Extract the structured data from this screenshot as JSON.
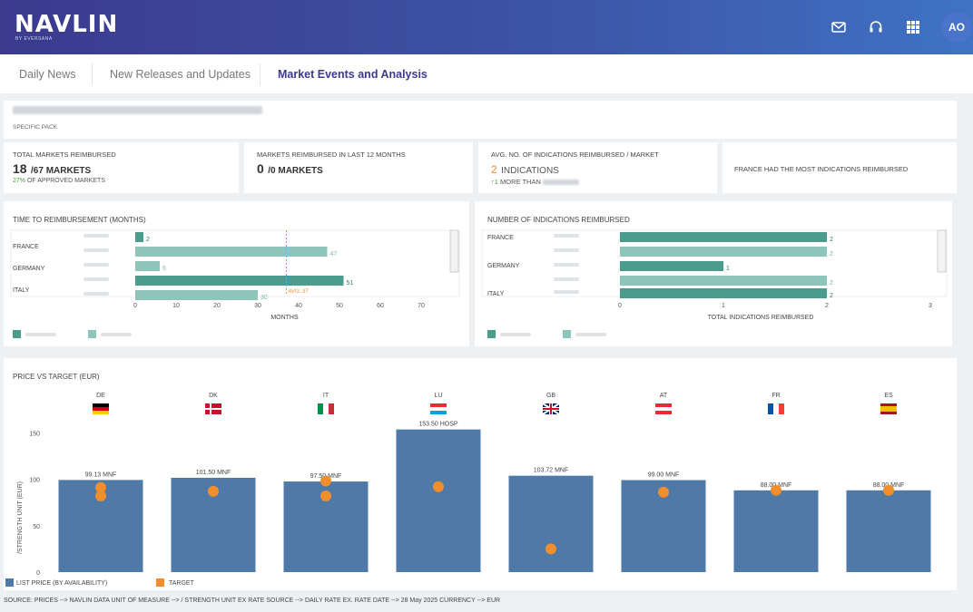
{
  "brand": {
    "name": "NAVLIN",
    "sub": "BY EVERSANA"
  },
  "user": {
    "initials": "AO"
  },
  "tabs": [
    {
      "label": "Daily News"
    },
    {
      "label": "New Releases and Updates"
    },
    {
      "label": "Market Events and Analysis"
    }
  ],
  "pack": {
    "label": "SPECIFIC PACK"
  },
  "kpis": {
    "total_label": "TOTAL MARKETS REIMBURSED",
    "total_value": "18",
    "total_unit": "/67 MARKETS",
    "total_pct": "27%",
    "total_pct_text": " OF APPROVED MARKETS",
    "last12_label": "MARKETS REIMBURSED IN LAST 12 MONTHS",
    "last12_value": "0",
    "last12_unit": "/0 MARKETS",
    "avg_label": "AVG. NO. OF INDICATIONS REIMBURSED / MARKET",
    "avg_value": "2",
    "avg_unit": "INDICATIONS",
    "avg_delta": "1",
    "avg_delta_text": "MORE THAN",
    "most_text": "FRANCE HAD THE MOST INDICATIONS REIMBURSED"
  },
  "chart_data": [
    {
      "type": "bar",
      "title": "TIME TO REIMBURSEMENT (MONTHS)",
      "xlabel": "MONTHS",
      "xlim": [
        0,
        70
      ],
      "xticks": [
        "0",
        "10",
        "20",
        "30",
        "40",
        "50",
        "60",
        "70"
      ],
      "avg_label": "AVG: 37",
      "avg_value": 37,
      "countries": [
        "FRANCE",
        "GERMANY",
        "ITALY"
      ],
      "bars": [
        {
          "country": "FRANCE",
          "value": 2,
          "label": "2",
          "series": 0
        },
        {
          "country": "FRANCE",
          "value": 47,
          "label": "47",
          "series": 1
        },
        {
          "country": "GERMANY",
          "value": 6,
          "label": "6",
          "series": 1
        },
        {
          "country": "ITALY",
          "value": 51,
          "label": "51",
          "series": 0
        },
        {
          "country": "ITALY",
          "value": 30,
          "label": "30",
          "series": 1
        }
      ]
    },
    {
      "type": "bar",
      "title": "NUMBER OF INDICATIONS REIMBURSED",
      "xlabel": "TOTAL INDICATIONS REIMBURSED",
      "xlim": [
        0,
        3
      ],
      "xticks": [
        "0",
        "1",
        "2",
        "3"
      ],
      "countries": [
        "FRANCE",
        "GERMANY",
        "ITALY"
      ],
      "bars": [
        {
          "country": "FRANCE",
          "value": 2,
          "label": "2",
          "series": 0
        },
        {
          "country": "FRANCE",
          "value": 2,
          "label": "2",
          "series": 1
        },
        {
          "country": "GERMANY",
          "value": 1,
          "label": "1",
          "series": 0
        },
        {
          "country": "GERMANY",
          "value": 2,
          "label": "2",
          "series": 1
        },
        {
          "country": "ITALY",
          "value": 2,
          "label": "2",
          "series": 0
        }
      ]
    },
    {
      "type": "bar",
      "title": "PRICE VS TARGET (EUR)",
      "ylabel": "/STRENGTH UNIT (EUR)",
      "ylim": [
        0,
        160
      ],
      "yticks": [
        "0",
        "50",
        "100",
        "150"
      ],
      "categories": [
        "DE",
        "DK",
        "IT",
        "LU",
        "GB",
        "AT",
        "FR",
        "ES"
      ],
      "series": [
        {
          "name": "LIST PRICE (BY AVAILABILITY)",
          "values": [
            99.13,
            101.5,
            97.5,
            153.5,
            103.72,
            99.0,
            88.0,
            88.0
          ],
          "labels": [
            "99.13 MNF",
            "101.50 MNF",
            "97.50 MNF",
            "153.50 HOSP",
            "103.72 MNF",
            "99.00 MNF",
            "88.00 MNF",
            "88.00 MNF"
          ]
        },
        {
          "name": "TARGET",
          "points": [
            [
              0,
              91
            ],
            [
              0,
              82
            ],
            [
              1,
              87
            ],
            [
              2,
              98
            ],
            [
              2,
              82
            ],
            [
              3,
              92
            ],
            [
              4,
              25
            ],
            [
              5,
              86
            ],
            [
              6,
              88
            ],
            [
              7,
              88
            ]
          ]
        }
      ]
    }
  ],
  "footer": "SOURCE:  PRICES --> NAVLIN DATA    UNIT OF MEASURE --> / STRENGTH UNIT    EX RATE SOURCE --> DAILY RATE    EX. RATE DATE --> 28 May 2025    CURRENCY --> EUR",
  "colors": {
    "series0": "#4a9c8c",
    "series1": "#8ec5bb",
    "price": "#4f79a7",
    "target": "#f28e2b"
  }
}
